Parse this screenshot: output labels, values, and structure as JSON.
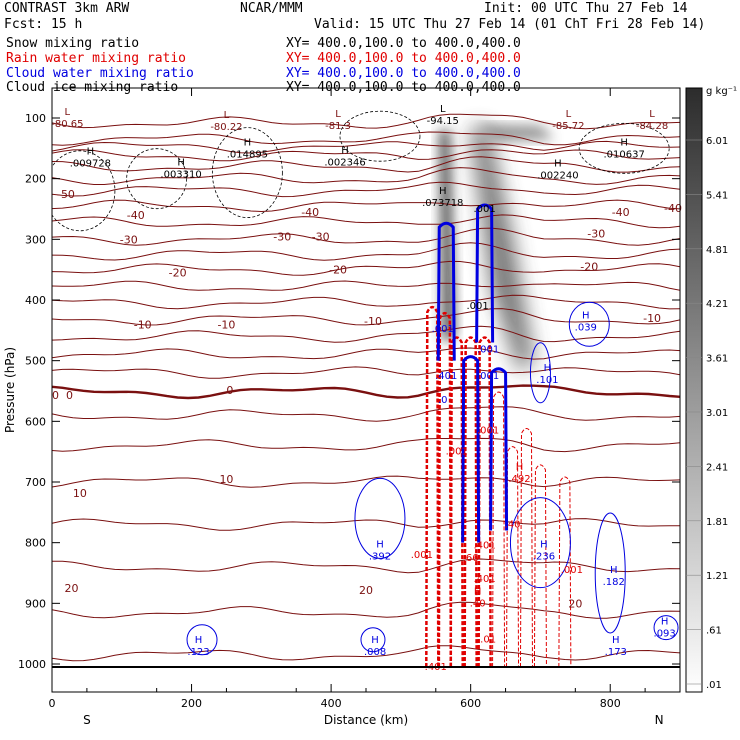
{
  "header": {
    "model": "CONTRAST   3km ARW",
    "agency": "NCAR/MMM",
    "init": "Init: 00 UTC Thu 27 Feb 14",
    "fcst": "Fcst:   15 h",
    "valid": "Valid: 15 UTC Thu 27 Feb 14 (01 ChT Fri 28 Feb 14)",
    "fields": [
      {
        "name": "Snow mixing ratio",
        "xy": "XY= 400.0,100.0 to 400.0,400.0",
        "color": "#000000"
      },
      {
        "name": "Rain water mixing ratio",
        "xy": "XY= 400.0,100.0 to 400.0,400.0",
        "color": "#e00000"
      },
      {
        "name": "Cloud water mixing ratio",
        "xy": "XY= 400.0,100.0 to 400.0,400.0",
        "color": "#0000e0"
      },
      {
        "name": "Cloud ice mixing ratio",
        "xy": "XY= 400.0,100.0 to 400.0,400.0",
        "color": "#000000"
      }
    ]
  },
  "colors": {
    "temperature": "#7a1010",
    "rain": "#e00000",
    "cloud": "#0000e0",
    "axis": "#000000"
  },
  "chart_data": {
    "type": "heatmap",
    "xlabel": "Distance (km)",
    "ylabel": "Pressure (hPa)",
    "xlim": [
      0,
      900
    ],
    "ylim": [
      1050,
      70
    ],
    "x_ticks": [
      0,
      200,
      400,
      600,
      800
    ],
    "y_ticks": [
      100,
      200,
      300,
      400,
      500,
      600,
      700,
      800,
      900,
      1000
    ],
    "x_end_labels": [
      "S",
      "N"
    ],
    "colorbar": {
      "unit_label": "g kg⁻¹",
      "ticks": [
        "6.01",
        "5.41",
        "4.81",
        "4.21",
        "3.61",
        "3.01",
        "2.41",
        "1.81",
        "1.21",
        ".61",
        ".01"
      ]
    },
    "temperature_labels": [
      {
        "text": "-50",
        "x": 20,
        "p": 225
      },
      {
        "text": "-40",
        "x": 120,
        "p": 260
      },
      {
        "text": "-40",
        "x": 370,
        "p": 255
      },
      {
        "text": "-40",
        "x": 815,
        "p": 255
      },
      {
        "text": "-40",
        "x": 890,
        "p": 248
      },
      {
        "text": "-30",
        "x": 110,
        "p": 300
      },
      {
        "text": "-30",
        "x": 330,
        "p": 295
      },
      {
        "text": "-30",
        "x": 385,
        "p": 295
      },
      {
        "text": "-30",
        "x": 780,
        "p": 290
      },
      {
        "text": "-20",
        "x": 180,
        "p": 355
      },
      {
        "text": "-20",
        "x": 410,
        "p": 350
      },
      {
        "text": "-20",
        "x": 770,
        "p": 345
      },
      {
        "text": "-10",
        "x": 130,
        "p": 440
      },
      {
        "text": "-10",
        "x": 250,
        "p": 440
      },
      {
        "text": "-10",
        "x": 460,
        "p": 435
      },
      {
        "text": "-10",
        "x": 860,
        "p": 430
      },
      {
        "text": "0",
        "x": 5,
        "p": 557
      },
      {
        "text": "0",
        "x": 25,
        "p": 557
      },
      {
        "text": "0",
        "x": 255,
        "p": 548
      },
      {
        "text": "10",
        "x": 40,
        "p": 718
      },
      {
        "text": "10",
        "x": 250,
        "p": 695
      },
      {
        "text": "20",
        "x": 28,
        "p": 875
      },
      {
        "text": "20",
        "x": 450,
        "p": 878
      },
      {
        "text": "20",
        "x": 750,
        "p": 900
      }
    ],
    "extrema": [
      {
        "kind": "L",
        "value": "-80.65",
        "x": 22,
        "p": 105,
        "color": "#7a1010"
      },
      {
        "kind": "L",
        "value": "-80.22",
        "x": 250,
        "p": 110,
        "color": "#7a1010"
      },
      {
        "kind": "L",
        "value": "-81.3",
        "x": 410,
        "p": 108,
        "color": "#7a1010"
      },
      {
        "kind": "L",
        "value": "-94.15",
        "x": 560,
        "p": 100,
        "color": "#000000"
      },
      {
        "kind": "L",
        "value": "-85.72",
        "x": 740,
        "p": 108,
        "color": "#7a1010"
      },
      {
        "kind": "L",
        "value": "-84.28",
        "x": 860,
        "p": 108,
        "color": "#7a1010"
      },
      {
        "kind": "H",
        "value": ".009728",
        "x": 55,
        "p": 170,
        "color": "#000000"
      },
      {
        "kind": "H",
        "value": ".014895",
        "x": 280,
        "p": 155,
        "color": "#000000"
      },
      {
        "kind": "H",
        "value": ".002346",
        "x": 420,
        "p": 168,
        "color": "#000000"
      },
      {
        "kind": "H",
        "value": ".010637",
        "x": 820,
        "p": 155,
        "color": "#000000"
      },
      {
        "kind": "H",
        "value": ".003310",
        "x": 185,
        "p": 188,
        "color": "#000000"
      },
      {
        "kind": "H",
        "value": ".002240",
        "x": 725,
        "p": 190,
        "color": "#000000"
      },
      {
        "kind": "H",
        "value": ".073718",
        "x": 560,
        "p": 235,
        "color": "#000000"
      },
      {
        "kind": "",
        "value": ".001",
        "x": 620,
        "p": 245,
        "color": "#000000"
      },
      {
        "kind": "",
        "value": ".001",
        "x": 610,
        "p": 405,
        "color": "#000000"
      },
      {
        "kind": "",
        "value": ".001",
        "x": 560,
        "p": 443,
        "color": "#0000e0"
      },
      {
        "kind": "",
        "value": ".001",
        "x": 625,
        "p": 477,
        "color": "#0000e0"
      },
      {
        "kind": "H",
        "value": ".039",
        "x": 765,
        "p": 440,
        "color": "#0000e0"
      },
      {
        "kind": "H",
        "value": ".101",
        "x": 710,
        "p": 527,
        "color": "#0000e0"
      },
      {
        "kind": "",
        "value": ".401",
        "x": 565,
        "p": 520,
        "color": "#0000e0"
      },
      {
        "kind": "",
        "value": ".001",
        "x": 625,
        "p": 520,
        "color": "#0000e0"
      },
      {
        "kind": "",
        "value": ".0",
        "x": 560,
        "p": 560,
        "color": "#0000e0"
      },
      {
        "kind": "",
        "value": ".001",
        "x": 625,
        "p": 610,
        "color": "#e00000"
      },
      {
        "kind": "",
        "value": ".001",
        "x": 580,
        "p": 645,
        "color": "#e00000"
      },
      {
        "kind": "H",
        "value": ".492",
        "x": 670,
        "p": 690,
        "color": "#e00000"
      },
      {
        "kind": "",
        "value": ".40",
        "x": 660,
        "p": 765,
        "color": "#e00000"
      },
      {
        "kind": "",
        "value": ".401",
        "x": 620,
        "p": 800,
        "color": "#e00000"
      },
      {
        "kind": "H",
        "value": ".392",
        "x": 470,
        "p": 818,
        "color": "#0000e0"
      },
      {
        "kind": "",
        "value": ".001",
        "x": 530,
        "p": 815,
        "color": "#e00000"
      },
      {
        "kind": "H",
        "value": ".236",
        "x": 705,
        "p": 818,
        "color": "#0000e0"
      },
      {
        "kind": "",
        "value": ".001",
        "x": 745,
        "p": 840,
        "color": "#e00000"
      },
      {
        "kind": "H",
        "value": ".182",
        "x": 805,
        "p": 860,
        "color": "#0000e0"
      },
      {
        "kind": "",
        "value": ".66",
        "x": 600,
        "p": 820,
        "color": "#e00000"
      },
      {
        "kind": "",
        "value": ".401",
        "x": 620,
        "p": 855,
        "color": "#e00000"
      },
      {
        "kind": "H",
        "value": ".40",
        "x": 610,
        "p": 895,
        "color": "#e00000"
      },
      {
        "kind": "",
        "value": ".01",
        "x": 625,
        "p": 955,
        "color": "#e00000"
      },
      {
        "kind": "H",
        "value": ".093",
        "x": 878,
        "p": 945,
        "color": "#0000e0"
      },
      {
        "kind": "H",
        "value": ".123",
        "x": 210,
        "p": 975,
        "color": "#0000e0"
      },
      {
        "kind": "H",
        "value": ".008",
        "x": 463,
        "p": 975,
        "color": "#0000e0"
      },
      {
        "kind": "H",
        "value": ".173",
        "x": 808,
        "p": 975,
        "color": "#0000e0"
      },
      {
        "kind": "",
        "value": ".401",
        "x": 550,
        "p": 1000,
        "color": "#e00000"
      }
    ]
  }
}
